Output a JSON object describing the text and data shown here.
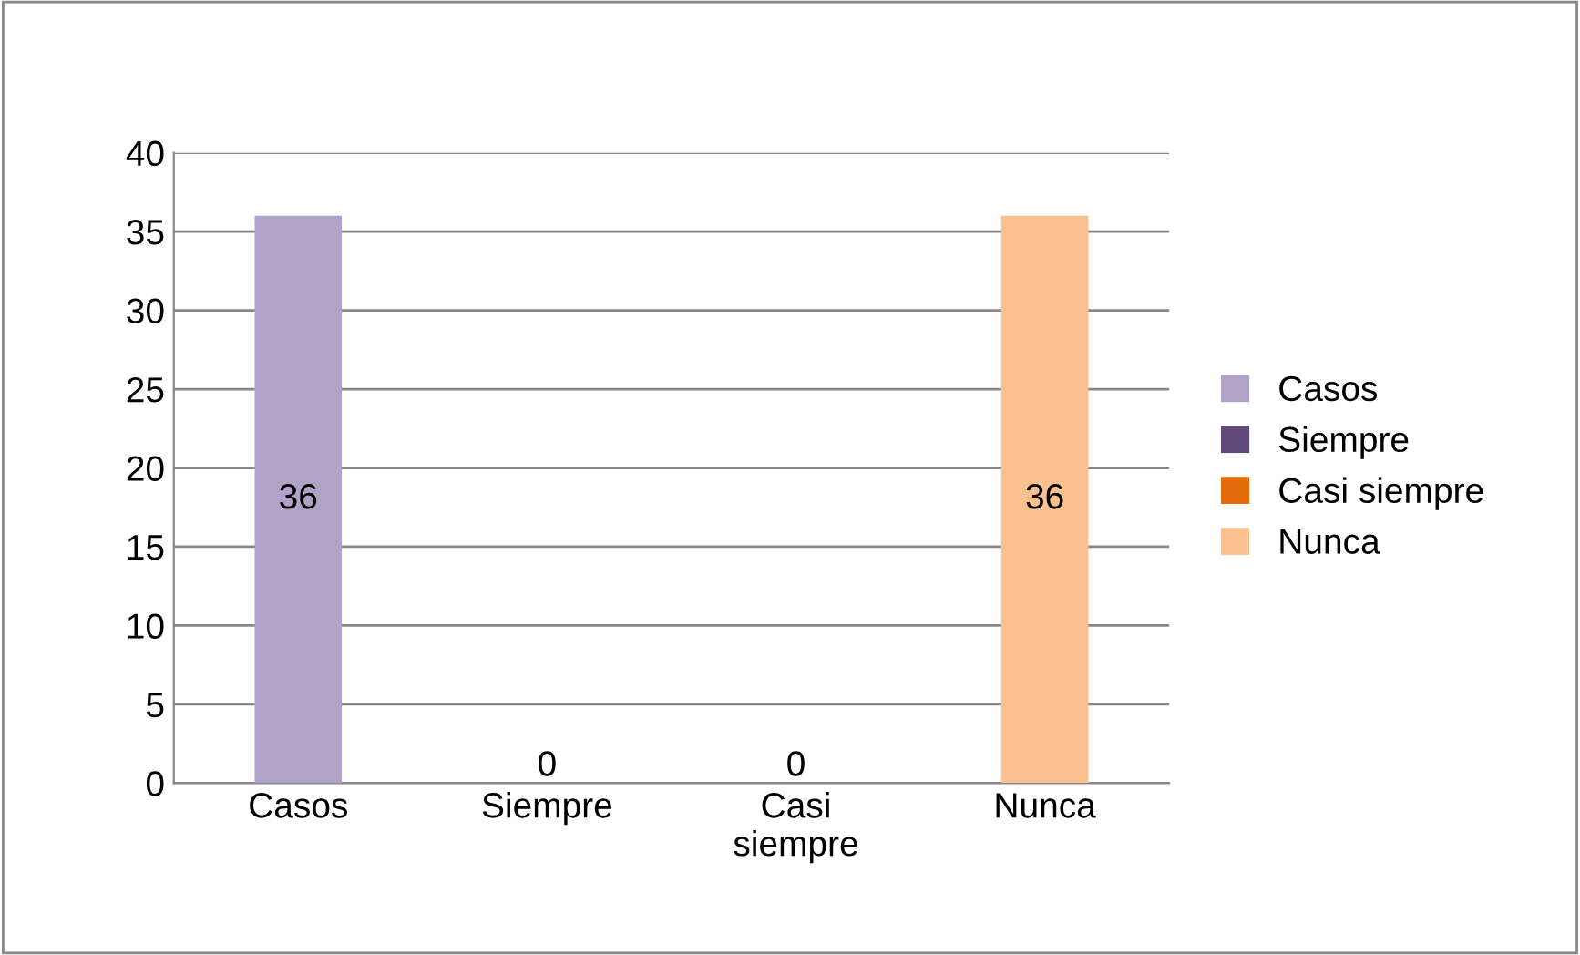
{
  "chart_data": {
    "type": "bar",
    "categories": [
      "Casos",
      "Siempre",
      "Casi siempre",
      "Nunca"
    ],
    "series": [
      {
        "name": "Casos",
        "color": "#b3a2c7",
        "values": [
          36,
          null,
          null,
          null
        ]
      },
      {
        "name": "Siempre",
        "color": "#604a7b",
        "values": [
          null,
          0,
          null,
          null
        ]
      },
      {
        "name": "Casi siempre",
        "color": "#e46c0a",
        "values": [
          null,
          null,
          0,
          null
        ]
      },
      {
        "name": "Nunca",
        "color": "#fac090",
        "values": [
          null,
          null,
          null,
          36
        ]
      }
    ],
    "ylim": [
      0,
      40
    ],
    "yticks": [
      0,
      5,
      10,
      15,
      20,
      25,
      30,
      35,
      40
    ],
    "grid": "y",
    "legend": "right",
    "data_labels": true
  }
}
